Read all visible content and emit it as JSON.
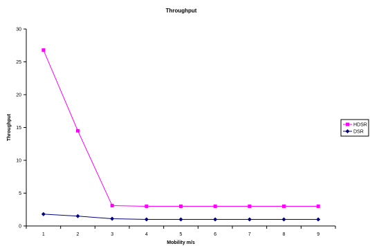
{
  "chart_data": {
    "type": "line",
    "title": "Throughput",
    "xlabel": "Mobility m/s",
    "ylabel": "Throughput",
    "categories": [
      "1",
      "2",
      "3",
      "4",
      "5",
      "6",
      "7",
      "8",
      "9"
    ],
    "ylim": [
      0,
      30
    ],
    "yticks": [
      0,
      5,
      10,
      15,
      20,
      25,
      30
    ],
    "grid": false,
    "legend_position": "right",
    "series": [
      {
        "name": "HDSR",
        "color": "#ff00ff",
        "marker": "square",
        "values": [
          26.8,
          14.5,
          3.1,
          3.0,
          3.0,
          3.0,
          3.0,
          3.0,
          3.0
        ]
      },
      {
        "name": "DSR",
        "color": "#000080",
        "marker": "diamond",
        "values": [
          1.8,
          1.5,
          1.1,
          1.0,
          1.0,
          1.0,
          1.0,
          1.0,
          1.0
        ]
      }
    ]
  }
}
